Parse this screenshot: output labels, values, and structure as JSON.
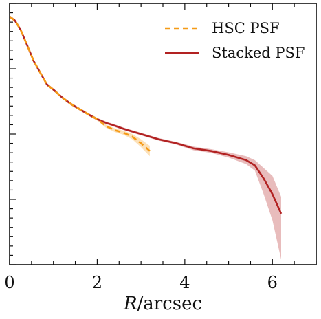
{
  "chart_data": {
    "type": "line",
    "title": "",
    "xlabel_math": "R",
    "xlabel_unit": "/arcsec",
    "ylabel": "",
    "xlim": [
      0,
      7
    ],
    "ylim": [
      0,
      1
    ],
    "x_ticks": [
      "0",
      "2",
      "4",
      "6"
    ],
    "legend_position": "top-right",
    "series": [
      {
        "name": "HSC PSF",
        "color": "#f59a16",
        "style": "dashed",
        "x": [
          0.0,
          0.12,
          0.25,
          0.4,
          0.55,
          0.7,
          0.85,
          1.0,
          1.2,
          1.4,
          1.6,
          1.8,
          2.0,
          2.2,
          2.4,
          2.6,
          2.8,
          3.0,
          3.2
        ],
        "y": [
          0.95,
          0.935,
          0.9,
          0.84,
          0.78,
          0.735,
          0.69,
          0.67,
          0.64,
          0.615,
          0.595,
          0.575,
          0.557,
          0.53,
          0.515,
          0.505,
          0.49,
          0.465,
          0.435
        ],
        "band_low": [
          0.945,
          0.93,
          0.895,
          0.835,
          0.775,
          0.73,
          0.685,
          0.665,
          0.635,
          0.61,
          0.59,
          0.57,
          0.552,
          0.524,
          0.508,
          0.497,
          0.48,
          0.45,
          0.415
        ],
        "band_high": [
          0.955,
          0.94,
          0.905,
          0.845,
          0.785,
          0.74,
          0.695,
          0.675,
          0.645,
          0.62,
          0.6,
          0.58,
          0.562,
          0.536,
          0.522,
          0.513,
          0.5,
          0.48,
          0.455
        ]
      },
      {
        "name": "Stacked PSF",
        "color": "#b22222",
        "style": "solid",
        "x": [
          0.0,
          0.12,
          0.25,
          0.4,
          0.55,
          0.7,
          0.85,
          1.0,
          1.2,
          1.4,
          1.6,
          1.8,
          2.0,
          2.2,
          2.4,
          2.6,
          2.8,
          3.0,
          3.4,
          3.8,
          4.2,
          4.6,
          5.0,
          5.4,
          5.6,
          5.8,
          6.0,
          6.2
        ],
        "y": [
          0.95,
          0.935,
          0.9,
          0.84,
          0.78,
          0.735,
          0.69,
          0.67,
          0.64,
          0.615,
          0.595,
          0.575,
          0.557,
          0.543,
          0.532,
          0.52,
          0.51,
          0.5,
          0.48,
          0.465,
          0.445,
          0.435,
          0.42,
          0.4,
          0.38,
          0.33,
          0.27,
          0.195
        ],
        "band_low": [
          0.945,
          0.93,
          0.895,
          0.835,
          0.775,
          0.73,
          0.685,
          0.665,
          0.635,
          0.61,
          0.59,
          0.57,
          0.552,
          0.538,
          0.527,
          0.515,
          0.505,
          0.495,
          0.475,
          0.46,
          0.438,
          0.428,
          0.41,
          0.385,
          0.36,
          0.27,
          0.17,
          0.02
        ],
        "band_high": [
          0.955,
          0.94,
          0.905,
          0.845,
          0.785,
          0.74,
          0.695,
          0.675,
          0.645,
          0.62,
          0.6,
          0.58,
          0.562,
          0.548,
          0.537,
          0.525,
          0.515,
          0.505,
          0.485,
          0.47,
          0.452,
          0.442,
          0.43,
          0.415,
          0.4,
          0.37,
          0.34,
          0.26
        ]
      }
    ]
  }
}
